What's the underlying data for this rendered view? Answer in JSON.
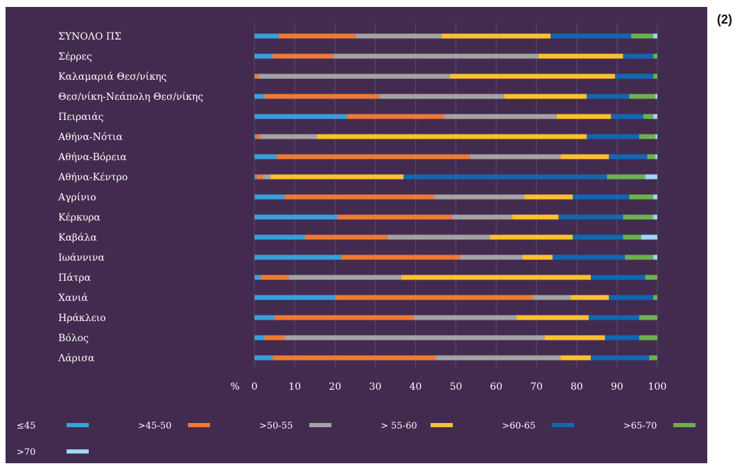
{
  "figure_number": "(2)",
  "chart_data": {
    "type": "bar",
    "orientation": "horizontal",
    "stacked": true,
    "categories": [
      "ΣΥΝΟΛΟ ΠΣ",
      "Σέρρες",
      "Καλαμαριά Θεσ/νίκης",
      "Θεσ/νίκη-Νεάπολη Θεσ/νίκης",
      "Πειραιάς",
      "Αθήνα-Νότια",
      "Αθήνα-Βόρεια",
      "Αθήνα-Κέντρο",
      "Αγρίνιο",
      "Κέρκυρα",
      "Καβάλα",
      "Ιωάννινα",
      "Πάτρα",
      "Χανιά",
      "Ηράκλειο",
      "Βόλος",
      "Λάρισα"
    ],
    "series": [
      {
        "name": "≤45",
        "color": "#3a9fdc",
        "values": [
          6,
          4.5,
          0,
          2.5,
          23,
          0.5,
          5.5,
          0.5,
          7.5,
          20.5,
          12.5,
          21.5,
          1.5,
          20,
          5,
          2.5,
          4.5
        ]
      },
      {
        "name": ">45-50",
        "color": "#ee7a35",
        "values": [
          19,
          15,
          1,
          28.5,
          24,
          1,
          48,
          1.5,
          37,
          28.5,
          20.5,
          29.5,
          7,
          49,
          34.5,
          5,
          40.5
        ]
      },
      {
        "name": ">50-55",
        "color": "#a3a3a3",
        "values": [
          21.5,
          51,
          47.5,
          31,
          28,
          14,
          22.5,
          2,
          22.5,
          15,
          25.5,
          15.5,
          28,
          9.5,
          25.5,
          64.5,
          31
        ]
      },
      {
        "name": "> 55-60",
        "color": "#fdc02f",
        "values": [
          27,
          21,
          41,
          20.5,
          13.5,
          67,
          12,
          33,
          12,
          11.5,
          20.5,
          7.5,
          47,
          9.5,
          18,
          15,
          7.5
        ]
      },
      {
        "name": ">60-65",
        "color": "#1067b2",
        "values": [
          20,
          7.5,
          9.5,
          10.5,
          8,
          13,
          9.5,
          50.5,
          14,
          16,
          12.5,
          18,
          13.5,
          11,
          12.5,
          8.5,
          14.5
        ]
      },
      {
        "name": ">65-70",
        "color": "#6bb24f",
        "values": [
          5.5,
          1.5,
          1,
          6.5,
          2.5,
          4,
          2,
          9.5,
          6,
          7.5,
          4.5,
          7,
          3,
          1,
          4.5,
          4.5,
          2
        ]
      },
      {
        "name": ">70",
        "color": "#9fd6f5",
        "values": [
          1,
          0,
          0,
          0.5,
          1,
          0.5,
          0.5,
          3,
          1,
          1,
          4.5,
          1,
          0,
          0,
          0,
          0,
          0
        ]
      }
    ],
    "x_unit": "%",
    "xlim": [
      0,
      100
    ],
    "x_ticks": [
      "0",
      "10",
      "20",
      "30",
      "40",
      "50",
      "60",
      "70",
      "80",
      "90",
      "100"
    ],
    "grid": true,
    "legend_position": "bottom"
  }
}
